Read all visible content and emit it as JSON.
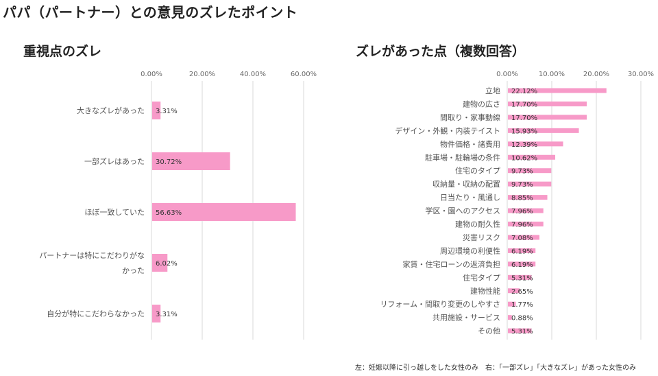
{
  "title": "パパ（パートナー）との意見のズレたポイント",
  "footnote": "左：妊娠以降に引っ越しをした女性のみ　右：「一部ズレ」「大きなズレ」があった女性のみ",
  "colors": {
    "bar": "#f79ac8",
    "grid": "#d9d9d9"
  },
  "chart_data": [
    {
      "type": "bar",
      "orientation": "horizontal",
      "title": "重視点のズレ",
      "categories": [
        "大きなズレがあった",
        "一部ズレはあった",
        "ほぼ一致していた",
        "パートナーは特にこだわりがなかった",
        "自分が特にこだわらなかった"
      ],
      "category_lines": [
        [
          "大きなズレがあった"
        ],
        [
          "一部ズレはあった"
        ],
        [
          "ほぼ一致していた"
        ],
        [
          "パートナーは特にこだわりがな",
          "かった"
        ],
        [
          "自分が特にこだわらなかった"
        ]
      ],
      "values": [
        3.31,
        30.72,
        56.63,
        6.02,
        3.31
      ],
      "value_labels": [
        "3.31%",
        "30.72%",
        "56.63%",
        "6.02%",
        "3.31%"
      ],
      "xlim": [
        0,
        60
      ],
      "ticks": [
        "0.00%",
        "20.00%",
        "40.00%",
        "60.00%"
      ],
      "xlabel": "",
      "ylabel": ""
    },
    {
      "type": "bar",
      "orientation": "horizontal",
      "title": "ズレがあった点（複数回答）",
      "categories": [
        "立地",
        "建物の広さ",
        "間取り・家事動線",
        "デザイン・外観・内装テイスト",
        "物件価格・諸費用",
        "駐車場・駐輪場の条件",
        "住宅のタイプ",
        "収納量・収納の配置",
        "日当たり・風通し",
        "学区・園へのアクセス",
        "建物の耐久性",
        "災害リスク",
        "周辺環境の利便性",
        "家賃・住宅ローンの返済負担",
        "住宅タイプ",
        "建物性能",
        "リフォーム・間取り変更のしやすさ",
        "共用施設・サービス",
        "その他"
      ],
      "values": [
        22.12,
        17.7,
        17.7,
        15.93,
        12.39,
        10.62,
        9.73,
        9.73,
        8.85,
        7.96,
        7.96,
        7.08,
        6.19,
        6.19,
        5.31,
        2.65,
        1.77,
        0.88,
        5.31
      ],
      "value_labels": [
        "22.12%",
        "17.70%",
        "17.70%",
        "15.93%",
        "12.39%",
        "10.62%",
        "9.73%",
        "9.73%",
        "8.85%",
        "7.96%",
        "7.96%",
        "7.08%",
        "6.19%",
        "6.19%",
        "5.31%",
        "2.65%",
        "1.77%",
        "0.88%",
        "5.31%"
      ],
      "xlim": [
        0,
        30
      ],
      "ticks": [
        "0.00%",
        "10.00%",
        "20.00%",
        "30.00%"
      ],
      "xlabel": "",
      "ylabel": ""
    }
  ]
}
